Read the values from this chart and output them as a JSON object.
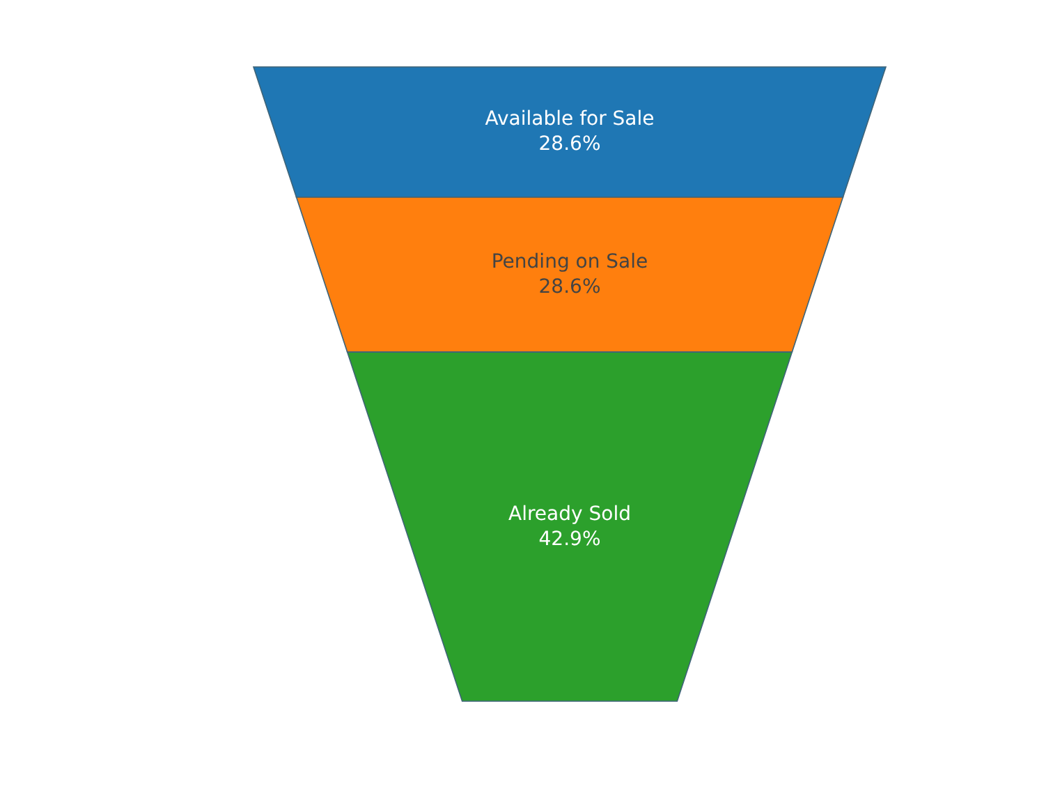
{
  "chart_data": {
    "type": "other",
    "categories": [
      "Available for Sale",
      "Pending on Sale",
      "Already Sold"
    ],
    "values": [
      28.6,
      28.6,
      42.9
    ],
    "colors": [
      "#1f77b4",
      "#ff7f0e",
      "#2ca02c"
    ],
    "value_labels": [
      "28.6%",
      "28.6%",
      "42.9%"
    ]
  }
}
